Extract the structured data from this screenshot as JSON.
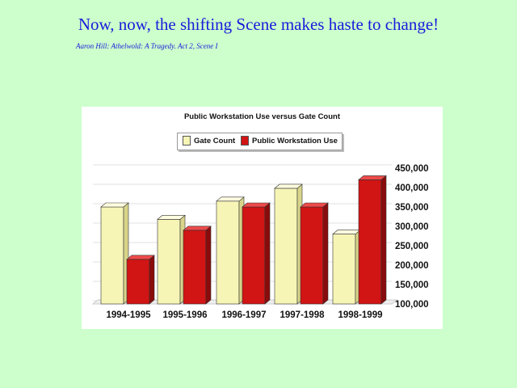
{
  "slide": {
    "title": "Now, now, the shifting Scene makes haste to change!",
    "citation": "Aaron Hill: Athelwold: A Tragedy. Act 2, Scene I"
  },
  "colors": {
    "background": "#ccffcc",
    "title_text": "#1a1adb",
    "gate_count": "#f7f5b6",
    "workstation_use": "#d11414"
  },
  "chart_data": {
    "type": "bar",
    "title": "Public Workstation Use versus Gate Count",
    "categories": [
      "1994-1995",
      "1995-1996",
      "1996-1997",
      "1997-1998",
      "1998-1999"
    ],
    "series": [
      {
        "name": "Gate Count",
        "values": [
          350000,
          318000,
          365000,
          398000,
          280000
        ]
      },
      {
        "name": "Public Workstation Use",
        "values": [
          215000,
          290000,
          350000,
          350000,
          420000
        ]
      }
    ],
    "ylim": [
      100000,
      450000
    ],
    "yticks": [
      "100,000",
      "150,000",
      "200,000",
      "250,000",
      "300,000",
      "350,000",
      "400,000",
      "450,000"
    ],
    "ytick_values": [
      100000,
      150000,
      200000,
      250000,
      300000,
      350000,
      400000,
      450000
    ],
    "grid": true,
    "legend_position": "top",
    "style": "3d"
  }
}
